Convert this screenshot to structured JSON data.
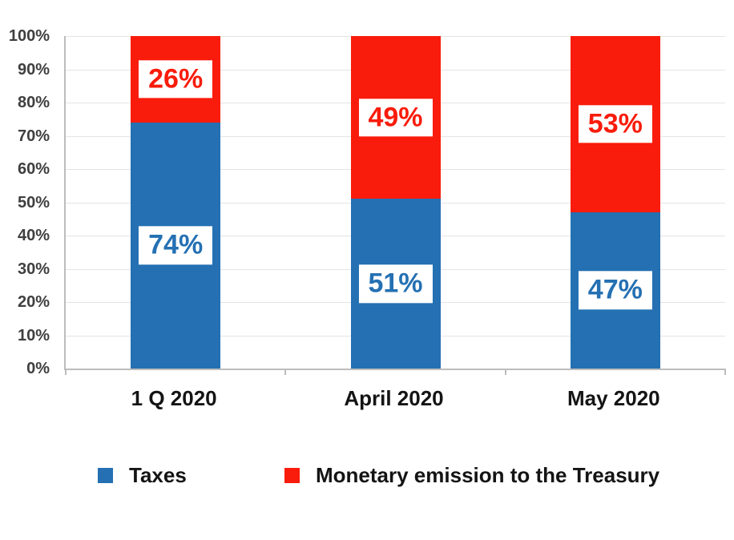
{
  "page": {
    "background": "#FFFFFF"
  },
  "chart_data": {
    "type": "bar",
    "variant": "stacked-column-100",
    "title": "",
    "xlabel": "",
    "ylabel": "",
    "categories": [
      "1 Q 2020",
      "April 2020",
      "May 2020"
    ],
    "series": [
      {
        "name": "Taxes",
        "color": "#2470B3",
        "values": [
          74,
          51,
          47
        ],
        "labels": [
          "74%",
          "51%",
          "47%"
        ]
      },
      {
        "name": "Monetary emission to the Treasury",
        "color": "#F91C0C",
        "values": [
          26,
          49,
          53
        ],
        "labels": [
          "26%",
          "49%",
          "53%"
        ]
      }
    ],
    "y_axis": {
      "min": 0,
      "max": 100,
      "step": 10,
      "tick_labels": [
        "100%",
        "90%",
        "80%",
        "70%",
        "60%",
        "50%",
        "40%",
        "30%",
        "20%",
        "10%",
        "0%"
      ]
    },
    "grid": true,
    "legend_position": "bottom",
    "axis_color": "#BDBDBD",
    "gridline_color": "#E4E4E4",
    "tick_label_color": "#3F3F3F",
    "category_label_color": "#141414",
    "data_label_background": "#FFFFFF"
  }
}
